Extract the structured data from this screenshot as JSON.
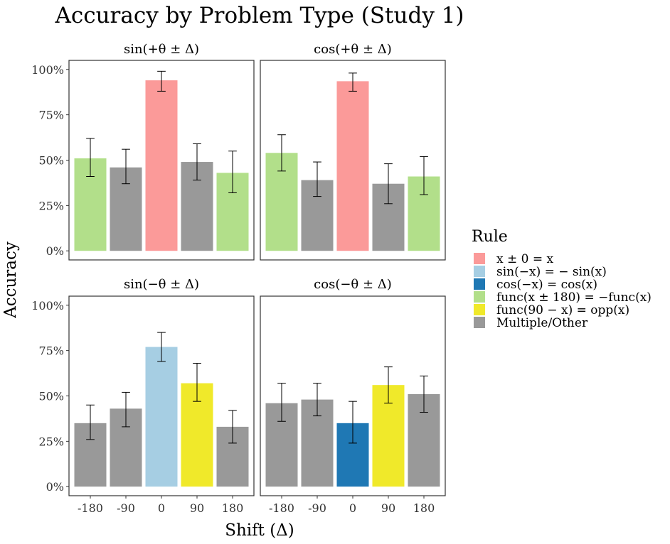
{
  "chart_data": {
    "type": "bar",
    "title": "Accuracy by Problem Type (Study 1)",
    "xlabel": "Shift (Δ)",
    "ylabel": "Accuracy",
    "ylim": [
      0,
      1
    ],
    "x_ticks": [
      "-180",
      "-90",
      "0",
      "90",
      "180"
    ],
    "y_ticks": [
      "0%",
      "25%",
      "50%",
      "75%",
      "100%"
    ],
    "y_tick_values": [
      0,
      0.25,
      0.5,
      0.75,
      1.0
    ],
    "legend": {
      "title": "Rule",
      "position": "right",
      "entries": [
        {
          "key": "zero",
          "label": "x ± 0 = x",
          "color": "#fb9a99"
        },
        {
          "key": "sin_neg",
          "label": "sin(−x) = − sin(x)",
          "color": "#a6cee3"
        },
        {
          "key": "cos_neg",
          "label": "cos(−x) = cos(x)",
          "color": "#1f78b4"
        },
        {
          "key": "func180",
          "label": "func(x ± 180) = −func(x)",
          "color": "#b2df8a"
        },
        {
          "key": "func90",
          "label": "func(90 − x) = opp(x)",
          "color": "#f0e92a"
        },
        {
          "key": "other",
          "label": "Multiple/Other",
          "color": "#999999"
        }
      ]
    },
    "panels": [
      {
        "label": "sin(+θ ± Δ)",
        "bars": [
          {
            "x": "-180",
            "value": 0.51,
            "lower": 0.41,
            "upper": 0.62,
            "rule": "func180"
          },
          {
            "x": "-90",
            "value": 0.46,
            "lower": 0.37,
            "upper": 0.56,
            "rule": "other"
          },
          {
            "x": "0",
            "value": 0.94,
            "lower": 0.88,
            "upper": 0.99,
            "rule": "zero"
          },
          {
            "x": "90",
            "value": 0.49,
            "lower": 0.39,
            "upper": 0.59,
            "rule": "other"
          },
          {
            "x": "180",
            "value": 0.43,
            "lower": 0.32,
            "upper": 0.55,
            "rule": "func180"
          }
        ]
      },
      {
        "label": "cos(+θ ± Δ)",
        "bars": [
          {
            "x": "-180",
            "value": 0.54,
            "lower": 0.44,
            "upper": 0.64,
            "rule": "func180"
          },
          {
            "x": "-90",
            "value": 0.39,
            "lower": 0.3,
            "upper": 0.49,
            "rule": "other"
          },
          {
            "x": "0",
            "value": 0.935,
            "lower": 0.88,
            "upper": 0.98,
            "rule": "zero"
          },
          {
            "x": "90",
            "value": 0.37,
            "lower": 0.26,
            "upper": 0.48,
            "rule": "other"
          },
          {
            "x": "180",
            "value": 0.41,
            "lower": 0.31,
            "upper": 0.52,
            "rule": "func180"
          }
        ]
      },
      {
        "label": "sin(−θ ± Δ)",
        "bars": [
          {
            "x": "-180",
            "value": 0.35,
            "lower": 0.26,
            "upper": 0.45,
            "rule": "other"
          },
          {
            "x": "-90",
            "value": 0.43,
            "lower": 0.33,
            "upper": 0.52,
            "rule": "other"
          },
          {
            "x": "0",
            "value": 0.77,
            "lower": 0.69,
            "upper": 0.85,
            "rule": "sin_neg"
          },
          {
            "x": "90",
            "value": 0.57,
            "lower": 0.47,
            "upper": 0.68,
            "rule": "func90"
          },
          {
            "x": "180",
            "value": 0.33,
            "lower": 0.24,
            "upper": 0.42,
            "rule": "other"
          }
        ]
      },
      {
        "label": "cos(−θ ± Δ)",
        "bars": [
          {
            "x": "-180",
            "value": 0.46,
            "lower": 0.36,
            "upper": 0.57,
            "rule": "other"
          },
          {
            "x": "-90",
            "value": 0.48,
            "lower": 0.39,
            "upper": 0.57,
            "rule": "other"
          },
          {
            "x": "0",
            "value": 0.35,
            "lower": 0.24,
            "upper": 0.47,
            "rule": "cos_neg"
          },
          {
            "x": "90",
            "value": 0.56,
            "lower": 0.46,
            "upper": 0.66,
            "rule": "func90"
          },
          {
            "x": "180",
            "value": 0.51,
            "lower": 0.41,
            "upper": 0.61,
            "rule": "other"
          }
        ]
      }
    ]
  }
}
